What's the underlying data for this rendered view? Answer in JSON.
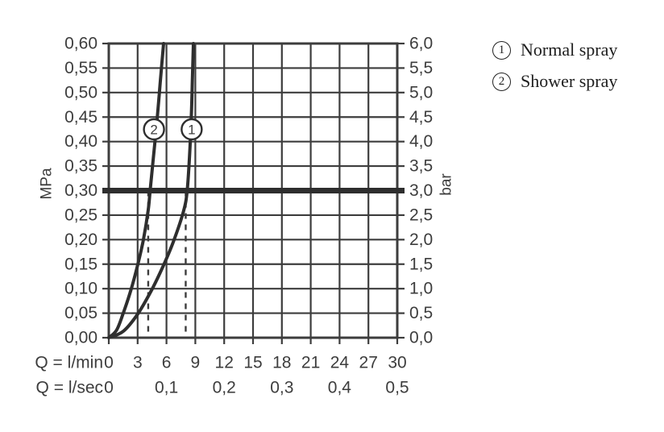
{
  "colors": {
    "ink": "#3d3d3d",
    "curve": "#2e2e2e",
    "background": "#ffffff"
  },
  "legend": {
    "items": [
      {
        "marker": "1",
        "label": "Normal spray"
      },
      {
        "marker": "2",
        "label": "Shower spray"
      }
    ]
  },
  "chart_data": {
    "type": "line",
    "title": "",
    "grid": true,
    "legend_position": "top-right",
    "axes": {
      "left": {
        "unit": "MPa",
        "range": [
          0,
          0.6
        ],
        "step": 0.05,
        "labels": [
          "0,60",
          "0,55",
          "0,50",
          "0,45",
          "0,40",
          "0,35",
          "0,30",
          "0,25",
          "0,20",
          "0,15",
          "0,10",
          "0,05",
          "0,00"
        ]
      },
      "right": {
        "unit": "bar",
        "range": [
          0,
          6
        ],
        "step": 0.5,
        "labels": [
          "6,0",
          "5,5",
          "5,0",
          "4,5",
          "4,0",
          "3,5",
          "3,0",
          "2,5",
          "2,0",
          "1,5",
          "1,0",
          "0,5",
          "0,0"
        ]
      },
      "x_lmin": {
        "title": "Q = l/min",
        "range": [
          0,
          30
        ],
        "values": [
          0,
          3,
          6,
          9,
          12,
          15,
          18,
          21,
          24,
          27,
          30
        ],
        "labels": [
          "0",
          "3",
          "6",
          "9",
          "12",
          "15",
          "18",
          "21",
          "24",
          "27",
          "30"
        ]
      },
      "x_lsec": {
        "title": "Q = l/sec",
        "positions_lmin": [
          0,
          6,
          12,
          18,
          24,
          30
        ],
        "labels": [
          "0",
          "0,1",
          "0,2",
          "0,3",
          "0,4",
          "0,5"
        ]
      }
    },
    "reference_line": {
      "mpa": 0.3,
      "bar": 3.0
    },
    "flow_guides": [
      {
        "x_lmin": 4.1,
        "from_mpa": 0.3,
        "to_mpa": 0
      },
      {
        "x_lmin": 8.0,
        "from_mpa": 0.3,
        "to_mpa": 0
      }
    ],
    "series": [
      {
        "id": "1",
        "slug": "normal-spray",
        "name": "Normal spray",
        "points_lmin_mpa": [
          [
            0,
            0
          ],
          [
            1.5,
            0.013
          ],
          [
            3,
            0.048
          ],
          [
            4.45,
            0.097
          ],
          [
            5.7,
            0.148
          ],
          [
            6.8,
            0.2
          ],
          [
            7.8,
            0.26
          ],
          [
            8.15,
            0.3
          ],
          [
            8.4,
            0.37
          ],
          [
            8.6,
            0.46
          ],
          [
            8.7,
            0.53
          ],
          [
            8.8,
            0.6
          ]
        ]
      },
      {
        "id": "2",
        "slug": "shower-spray",
        "name": "Shower spray",
        "points_lmin_mpa": [
          [
            0,
            0
          ],
          [
            0.8,
            0.015
          ],
          [
            1.47,
            0.048
          ],
          [
            2.3,
            0.097
          ],
          [
            3.0,
            0.148
          ],
          [
            3.6,
            0.2
          ],
          [
            4.1,
            0.26
          ],
          [
            4.3,
            0.3
          ],
          [
            4.65,
            0.37
          ],
          [
            5.0,
            0.44
          ],
          [
            5.35,
            0.52
          ],
          [
            5.7,
            0.6
          ]
        ]
      }
    ],
    "markers": [
      {
        "label": "2",
        "x_lmin": 4.7,
        "y_mpa": 0.425
      },
      {
        "label": "1",
        "x_lmin": 8.62,
        "y_mpa": 0.425
      }
    ]
  }
}
